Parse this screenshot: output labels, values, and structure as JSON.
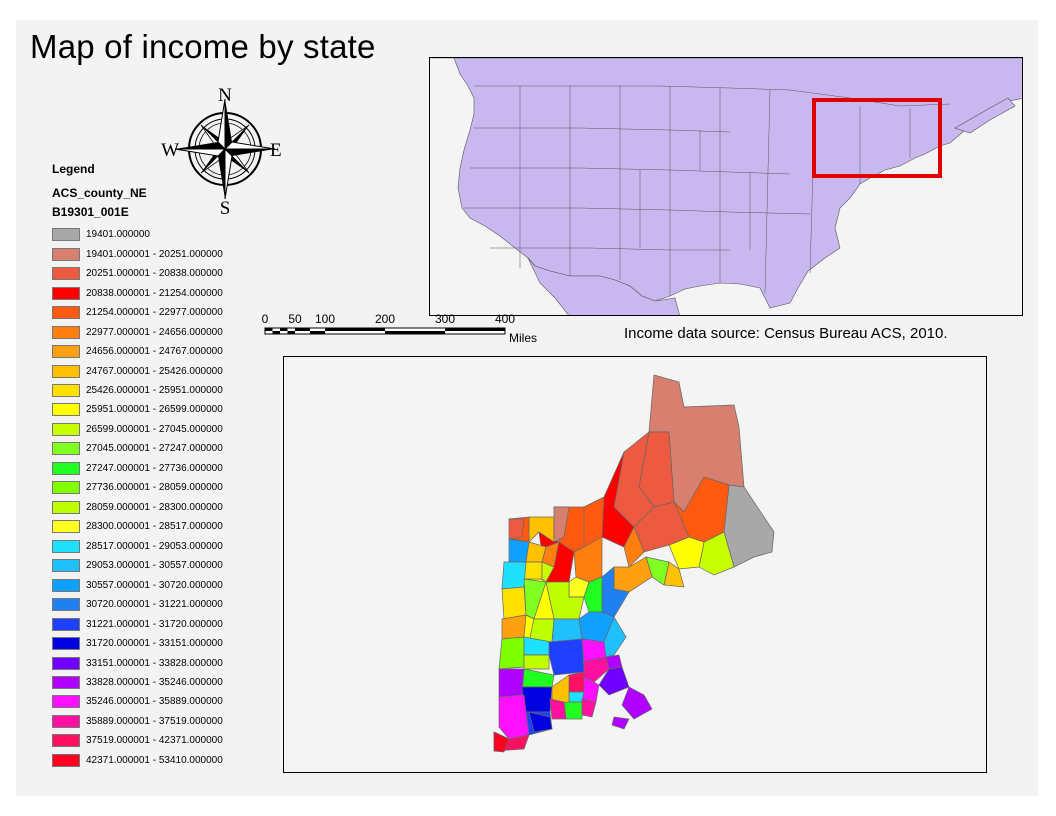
{
  "title": "Map of income by state",
  "compass": {
    "n": "N",
    "s": "S",
    "e": "E",
    "w": "W"
  },
  "legend": {
    "title": "Legend",
    "layer": "ACS_county_NE",
    "field": "B19301_001E",
    "classes": [
      {
        "label": "19401.000000",
        "color": "#a8a8a8"
      },
      {
        "label": "19401.000001 - 20251.000000",
        "color": "#d8806f"
      },
      {
        "label": "20251.000001 - 20838.000000",
        "color": "#ee5a40"
      },
      {
        "label": "20838.000001 - 21254.000000",
        "color": "#ff0000"
      },
      {
        "label": "21254.000001 - 22977.000000",
        "color": "#ff5a10"
      },
      {
        "label": "22977.000001 - 24656.000000",
        "color": "#ff8010"
      },
      {
        "label": "24656.000001 - 24767.000000",
        "color": "#ffa010"
      },
      {
        "label": "24767.000001 - 25426.000000",
        "color": "#ffc000"
      },
      {
        "label": "25426.000001 - 25951.000000",
        "color": "#ffe000"
      },
      {
        "label": "25951.000001 - 26599.000000",
        "color": "#ffff00"
      },
      {
        "label": "26599.000001 - 27045.000000",
        "color": "#c8ff00"
      },
      {
        "label": "27045.000001 - 27247.000000",
        "color": "#80ff20"
      },
      {
        "label": "27247.000001 - 27736.000000",
        "color": "#20ff20"
      },
      {
        "label": "27736.000001 - 28059.000000",
        "color": "#80ff00"
      },
      {
        "label": "28059.000001 - 28300.000000",
        "color": "#c0ff00"
      },
      {
        "label": "28300.000001 - 28517.000000",
        "color": "#ffff20"
      },
      {
        "label": "28517.000001 - 29053.000000",
        "color": "#20e0ff"
      },
      {
        "label": "29053.000001 - 30557.000000",
        "color": "#20c0ff"
      },
      {
        "label": "30557.000001 - 30720.000000",
        "color": "#10a0ff"
      },
      {
        "label": "30720.000001 - 31221.000000",
        "color": "#2080f0"
      },
      {
        "label": "31221.000001 - 31720.000000",
        "color": "#2040ff"
      },
      {
        "label": "31720.000001 - 33151.000000",
        "color": "#0000e0"
      },
      {
        "label": "33151.000001 - 33828.000000",
        "color": "#7000ff"
      },
      {
        "label": "33828.000001 - 35246.000000",
        "color": "#b000ff"
      },
      {
        "label": "35246.000001 - 35889.000000",
        "color": "#ff10ff"
      },
      {
        "label": "35889.000001 - 37519.000000",
        "color": "#ff10a0"
      },
      {
        "label": "37519.000001 - 42371.000000",
        "color": "#ff1060"
      },
      {
        "label": "42371.000001 - 53410.000000",
        "color": "#ff0020"
      }
    ]
  },
  "scalebar": {
    "ticks": [
      "0",
      "50",
      "100",
      "200",
      "300",
      "400"
    ],
    "unit": "Miles"
  },
  "source_note": "Income data source: Census Bureau ACS, 2010.",
  "colors": {
    "inset_fill": "#c9b8f0",
    "highlight_box": "#e00000",
    "sheet_bg": "#f3f3f3"
  }
}
